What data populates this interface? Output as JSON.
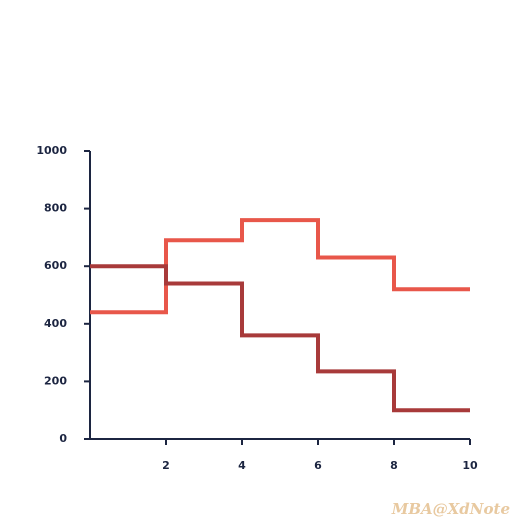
{
  "chart_data": {
    "type": "step",
    "x": [
      0,
      2,
      4,
      6,
      8,
      10
    ],
    "series": [
      {
        "color": "#e8574a",
        "values": [
          440,
          690,
          760,
          630,
          520,
          520
        ]
      },
      {
        "color": "#a83a3a",
        "values": [
          600,
          540,
          360,
          235,
          100,
          100
        ]
      }
    ],
    "xlim": [
      0,
      10
    ],
    "xticks": [
      2,
      4,
      6,
      8,
      10
    ],
    "ylim": [
      0,
      1000
    ],
    "yticks": [
      0,
      200,
      400,
      600,
      800,
      1000
    ],
    "watermark": "MBA@XdNote"
  }
}
